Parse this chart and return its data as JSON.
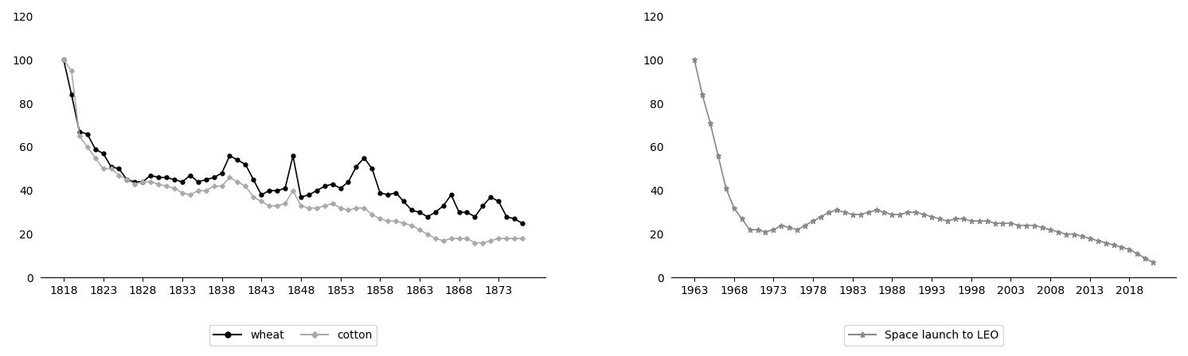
{
  "wheat_x": [
    1818,
    1819,
    1820,
    1821,
    1822,
    1823,
    1824,
    1825,
    1826,
    1827,
    1828,
    1829,
    1830,
    1831,
    1832,
    1833,
    1834,
    1835,
    1836,
    1837,
    1838,
    1839,
    1840,
    1841,
    1842,
    1843,
    1844,
    1845,
    1846,
    1847,
    1848,
    1849,
    1850,
    1851,
    1852,
    1853,
    1854,
    1855,
    1856,
    1857,
    1858,
    1859,
    1860,
    1861,
    1862,
    1863,
    1864,
    1865,
    1866,
    1867,
    1868,
    1869,
    1870,
    1871,
    1872,
    1873,
    1874,
    1875,
    1876
  ],
  "wheat_y": [
    100,
    84,
    67,
    66,
    59,
    57,
    51,
    50,
    45,
    44,
    44,
    47,
    46,
    46,
    45,
    44,
    47,
    44,
    45,
    46,
    48,
    56,
    54,
    52,
    45,
    38,
    40,
    40,
    41,
    56,
    37,
    38,
    40,
    42,
    43,
    41,
    44,
    51,
    55,
    50,
    39,
    38,
    39,
    35,
    31,
    30,
    28,
    30,
    33,
    38,
    30,
    30,
    28,
    33,
    37,
    35,
    28,
    27,
    25
  ],
  "cotton_x": [
    1818,
    1819,
    1820,
    1821,
    1822,
    1823,
    1824,
    1825,
    1826,
    1827,
    1828,
    1829,
    1830,
    1831,
    1832,
    1833,
    1834,
    1835,
    1836,
    1837,
    1838,
    1839,
    1840,
    1841,
    1842,
    1843,
    1844,
    1845,
    1846,
    1847,
    1848,
    1849,
    1850,
    1851,
    1852,
    1853,
    1854,
    1855,
    1856,
    1857,
    1858,
    1859,
    1860,
    1861,
    1862,
    1863,
    1864,
    1865,
    1866,
    1867,
    1868,
    1869,
    1870,
    1871,
    1872,
    1873,
    1874,
    1875,
    1876
  ],
  "cotton_y": [
    100,
    95,
    65,
    60,
    55,
    50,
    50,
    47,
    45,
    43,
    44,
    44,
    43,
    42,
    41,
    39,
    38,
    40,
    40,
    42,
    42,
    46,
    44,
    42,
    37,
    35,
    33,
    33,
    34,
    40,
    33,
    32,
    32,
    33,
    34,
    32,
    31,
    32,
    32,
    29,
    27,
    26,
    26,
    25,
    24,
    22,
    20,
    18,
    17,
    18,
    18,
    18,
    16,
    16,
    17,
    18,
    18,
    18,
    18
  ],
  "space_x": [
    1963,
    1964,
    1965,
    1966,
    1967,
    1968,
    1969,
    1970,
    1971,
    1972,
    1973,
    1974,
    1975,
    1976,
    1977,
    1978,
    1979,
    1980,
    1981,
    1982,
    1983,
    1984,
    1985,
    1986,
    1987,
    1988,
    1989,
    1990,
    1991,
    1992,
    1993,
    1994,
    1995,
    1996,
    1997,
    1998,
    1999,
    2000,
    2001,
    2002,
    2003,
    2004,
    2005,
    2006,
    2007,
    2008,
    2009,
    2010,
    2011,
    2012,
    2013,
    2014,
    2015,
    2016,
    2017,
    2018,
    2019,
    2020,
    2021
  ],
  "space_y": [
    100,
    84,
    71,
    56,
    41,
    32,
    27,
    22,
    22,
    21,
    22,
    24,
    23,
    22,
    24,
    26,
    28,
    30,
    31,
    30,
    29,
    29,
    30,
    31,
    30,
    29,
    29,
    30,
    30,
    29,
    28,
    27,
    26,
    27,
    27,
    26,
    26,
    26,
    25,
    25,
    25,
    24,
    24,
    24,
    23,
    22,
    21,
    20,
    20,
    19,
    18,
    17,
    16,
    15,
    14,
    13,
    11,
    9,
    7
  ],
  "wheat_color": "#000000",
  "cotton_color": "#aaaaaa",
  "space_color": "#888888",
  "ylim": [
    0,
    120
  ],
  "yticks": [
    0,
    20,
    40,
    60,
    80,
    100,
    120
  ],
  "left_xticks": [
    1818,
    1823,
    1828,
    1833,
    1838,
    1843,
    1848,
    1853,
    1858,
    1863,
    1868,
    1873
  ],
  "right_xticks": [
    1963,
    1968,
    1973,
    1978,
    1983,
    1988,
    1993,
    1998,
    2003,
    2008,
    2013,
    2018
  ],
  "legend1_labels": [
    "wheat",
    "cotton"
  ],
  "legend2_labels": [
    "Space launch to LEO"
  ],
  "tick_fontsize": 10,
  "legend_fontsize": 10
}
